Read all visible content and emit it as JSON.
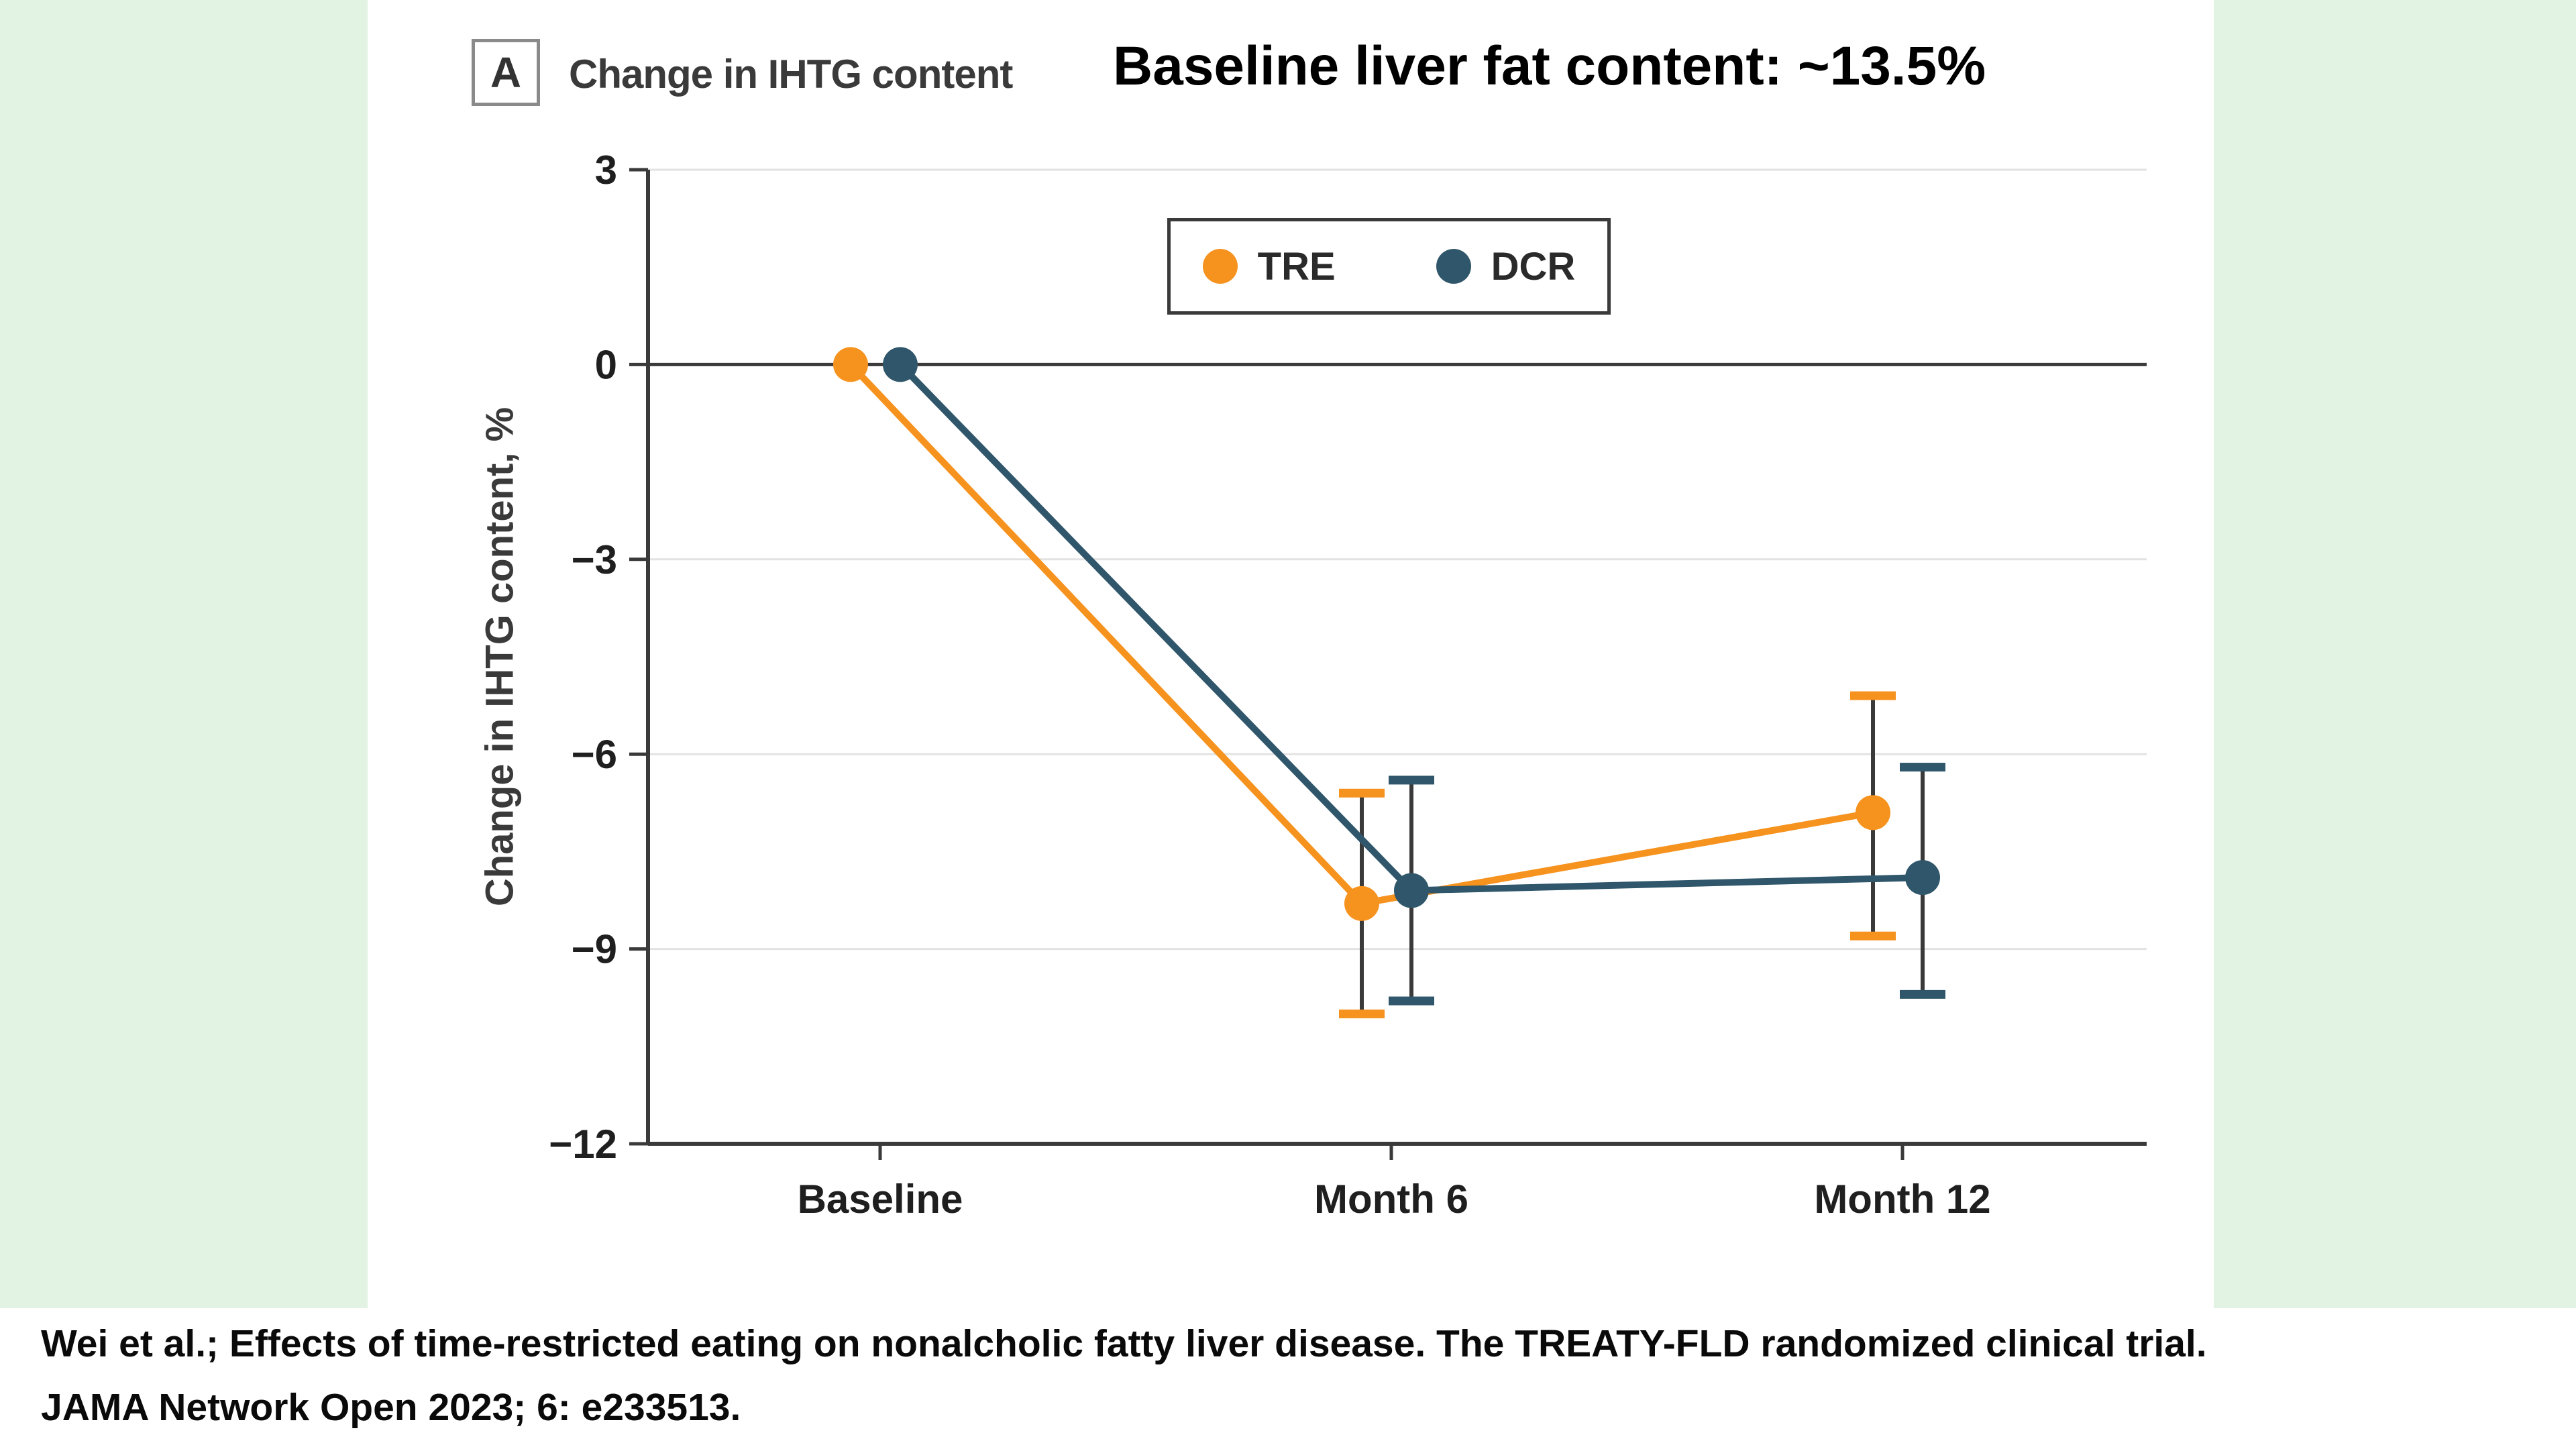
{
  "figure": {
    "panel_label": "A",
    "panel_title": "Change in IHTG content",
    "title": "Baseline liver fat content: ~13.5%"
  },
  "chart_data": {
    "type": "line",
    "categories": [
      "Baseline",
      "Month 6",
      "Month 12"
    ],
    "ylabel": "Change in IHTG content, %",
    "ylim": [
      -12,
      3
    ],
    "yticks": [
      3,
      0,
      -3,
      -6,
      -9,
      -12
    ],
    "grid": "light horizontal gridlines at y ticks, dark horizontal line at 0, legend boxed at top center",
    "series": [
      {
        "name": "TRE",
        "color": "#F6921E",
        "values": [
          0,
          -8.3,
          -6.9
        ],
        "ci_low": [
          null,
          -10.0,
          -8.8
        ],
        "ci_high": [
          null,
          -6.6,
          -5.1
        ]
      },
      {
        "name": "DCR",
        "color": "#2F566A",
        "values": [
          0,
          -8.1,
          -7.9
        ],
        "ci_low": [
          null,
          -9.8,
          -9.7
        ],
        "ci_high": [
          null,
          -6.4,
          -6.2
        ]
      }
    ]
  },
  "citation": {
    "line1": "Wei et al.; Effects of time-restricted eating on nonalcholic fatty liver disease. The TREATY-FLD randomized clinical trial.",
    "line2": "JAMA Network Open 2023; 6: e233513."
  },
  "colors": {
    "background": "#E2F3E4",
    "panel": "#FFFFFF",
    "axis": "#3A3A3A",
    "grid": "#E2E2E2",
    "tick_label": "#1F1F1F"
  }
}
